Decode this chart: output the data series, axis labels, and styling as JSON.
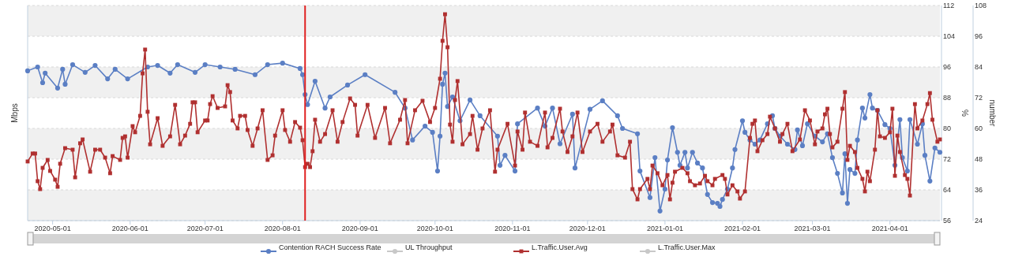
{
  "chart_data": {
    "type": "line",
    "ylabel": "Mbps",
    "y2label": "%",
    "y3label": "number",
    "xlim": [
      "2020-04-21",
      "2021-04-21"
    ],
    "xticks": [
      "2020-05-01",
      "2020-06-01",
      "2020-07-01",
      "2020-08-01",
      "2020-09-01",
      "2020-10-01",
      "2020-11-01",
      "2020-12-01",
      "2021-01-01",
      "2021-02-01",
      "2021-03-01",
      "2021-04-01"
    ],
    "y2lim": [
      56,
      112
    ],
    "y2ticks": [
      56,
      64,
      72,
      80,
      88,
      96,
      104,
      112
    ],
    "y3lim": [
      24,
      108
    ],
    "y3ticks": [
      24,
      36,
      48,
      60,
      72,
      84,
      96,
      108
    ],
    "grid": "y",
    "legend": "bottom",
    "ref_lines": [
      {
        "axis": "x",
        "value": "2020-08-10",
        "color": "#e02020"
      }
    ],
    "series": [
      {
        "name": "Contention RACH Success Rate",
        "color": "#5b7fc4",
        "axis": "y2",
        "marker": "circle",
        "x": [
          "2020-04-21",
          "2020-04-25",
          "2020-04-27",
          "2020-04-28",
          "2020-05-03",
          "2020-05-05",
          "2020-05-06",
          "2020-05-09",
          "2020-05-14",
          "2020-05-18",
          "2020-05-23",
          "2020-05-26",
          "2020-05-31",
          "2020-06-08",
          "2020-06-12",
          "2020-06-17",
          "2020-06-20",
          "2020-06-27",
          "2020-07-01",
          "2020-07-07",
          "2020-07-13",
          "2020-07-21",
          "2020-07-26",
          "2020-08-01",
          "2020-08-08",
          "2020-08-09",
          "2020-08-10",
          "2020-08-11",
          "2020-08-14",
          "2020-08-18",
          "2020-08-20",
          "2020-08-27",
          "2020-09-03",
          "2020-09-15",
          "2020-09-19",
          "2020-09-22",
          "2020-09-27",
          "2020-09-30",
          "2020-10-02",
          "2020-10-03",
          "2020-10-04",
          "2020-10-05",
          "2020-10-06",
          "2020-10-08",
          "2020-10-11",
          "2020-10-15",
          "2020-10-19",
          "2020-10-26",
          "2020-10-27",
          "2020-10-29",
          "2020-11-02",
          "2020-11-03",
          "2020-11-11",
          "2020-11-14",
          "2020-11-17",
          "2020-11-20",
          "2020-11-25",
          "2020-11-26",
          "2020-12-02",
          "2020-12-07",
          "2020-12-13",
          "2020-12-15",
          "2020-12-21",
          "2020-12-22",
          "2020-12-26",
          "2020-12-28",
          "2020-12-30",
          "2021-01-01",
          "2021-01-02",
          "2021-01-04",
          "2021-01-06",
          "2021-01-07",
          "2021-01-09",
          "2021-01-10",
          "2021-01-12",
          "2021-01-14",
          "2021-01-16",
          "2021-01-18",
          "2021-01-20",
          "2021-01-22",
          "2021-01-23",
          "2021-01-24",
          "2021-01-26",
          "2021-01-28",
          "2021-01-29",
          "2021-02-01",
          "2021-02-02",
          "2021-02-04",
          "2021-02-06",
          "2021-02-08",
          "2021-02-11",
          "2021-02-13",
          "2021-02-14",
          "2021-02-16",
          "2021-02-19",
          "2021-02-22",
          "2021-02-23",
          "2021-02-25",
          "2021-02-27",
          "2021-03-02",
          "2021-03-05",
          "2021-03-07",
          "2021-03-09",
          "2021-03-11",
          "2021-03-13",
          "2021-03-14",
          "2021-03-15",
          "2021-03-16",
          "2021-03-18",
          "2021-03-19",
          "2021-03-21",
          "2021-03-22",
          "2021-03-24",
          "2021-03-25",
          "2021-03-27",
          "2021-03-30",
          "2021-04-01",
          "2021-04-03",
          "2021-04-05",
          "2021-04-06",
          "2021-04-08",
          "2021-04-09",
          "2021-04-12",
          "2021-04-14",
          "2021-04-15",
          "2021-04-17",
          "2021-04-19",
          "2021-04-21"
        ],
        "values": [
          95,
          96,
          91.9,
          94.4,
          90.5,
          95.4,
          91.5,
          96.6,
          94.6,
          96.4,
          92.9,
          95.4,
          92.9,
          96,
          96.4,
          94.4,
          96.6,
          94.6,
          96.6,
          96,
          95.4,
          94,
          96.6,
          97,
          95.6,
          94,
          88.8,
          86.2,
          92.3,
          85.3,
          88.2,
          91.3,
          94,
          89.4,
          85.3,
          77,
          80.6,
          79,
          68.9,
          78,
          91.5,
          94.4,
          85.7,
          88.2,
          82,
          87.4,
          83.3,
          78,
          70.4,
          73,
          68.9,
          81.2,
          85.3,
          80.6,
          85.3,
          76,
          83.7,
          69.7,
          85,
          87.2,
          83.3,
          80,
          78.6,
          68.9,
          62,
          72.4,
          58.5,
          64.2,
          71.8,
          80.2,
          73.8,
          70.4,
          73.8,
          69.7,
          73.8,
          71,
          69.7,
          62.8,
          60.7,
          60.5,
          59.7,
          61.5,
          64.2,
          69.7,
          74.5,
          82,
          79,
          77,
          75.9,
          77,
          81.2,
          83.3,
          80,
          78,
          75.9,
          74.5,
          79.6,
          75.5,
          81.2,
          78,
          76.5,
          78.6,
          72.4,
          68.3,
          63.2,
          73.4,
          60.5,
          69.3,
          68.3,
          77,
          85.3,
          82.7,
          88.8,
          85.3,
          84.7,
          81,
          80,
          70.4,
          82.3,
          72.4,
          68.9,
          82.3,
          75.9,
          81.2,
          73,
          66.3,
          74.9,
          73.8
        ]
      },
      {
        "name": "UL Throughput",
        "color": "#c8c8c8"
      },
      {
        "name": "L.Traffic.User.Avg",
        "color": "#b03030",
        "axis": "y3",
        "marker": "square",
        "x": [
          "2020-04-21",
          "2020-04-23",
          "2020-04-24",
          "2020-04-25",
          "2020-04-26",
          "2020-04-27",
          "2020-04-29",
          "2020-04-30",
          "2020-05-02",
          "2020-05-03",
          "2020-05-04",
          "2020-05-06",
          "2020-05-09",
          "2020-05-10",
          "2020-05-12",
          "2020-05-13",
          "2020-05-16",
          "2020-05-18",
          "2020-05-20",
          "2020-05-22",
          "2020-05-24",
          "2020-05-25",
          "2020-05-28",
          "2020-05-29",
          "2020-05-30",
          "2020-05-31",
          "2020-06-02",
          "2020-06-03",
          "2020-06-05",
          "2020-06-06",
          "2020-06-07",
          "2020-06-08",
          "2020-06-09",
          "2020-06-12",
          "2020-06-14",
          "2020-06-17",
          "2020-06-19",
          "2020-06-21",
          "2020-06-23",
          "2020-06-25",
          "2020-06-26",
          "2020-06-27",
          "2020-06-28",
          "2020-07-01",
          "2020-07-02",
          "2020-07-03",
          "2020-07-04",
          "2020-07-06",
          "2020-07-09",
          "2020-07-10",
          "2020-07-11",
          "2020-07-12",
          "2020-07-14",
          "2020-07-15",
          "2020-07-17",
          "2020-07-18",
          "2020-07-20",
          "2020-07-22",
          "2020-07-24",
          "2020-07-26",
          "2020-07-28",
          "2020-07-29",
          "2020-08-01",
          "2020-08-02",
          "2020-08-04",
          "2020-08-06",
          "2020-08-08",
          "2020-08-09",
          "2020-08-10",
          "2020-08-11",
          "2020-08-12",
          "2020-08-13",
          "2020-08-14",
          "2020-08-16",
          "2020-08-18",
          "2020-08-21",
          "2020-08-23",
          "2020-08-25",
          "2020-08-28",
          "2020-08-30",
          "2020-08-31",
          "2020-09-04",
          "2020-09-07",
          "2020-09-11",
          "2020-09-13",
          "2020-09-17",
          "2020-09-19",
          "2020-09-20",
          "2020-09-23",
          "2020-09-26",
          "2020-09-29",
          "2020-10-01",
          "2020-10-03",
          "2020-10-04",
          "2020-10-05",
          "2020-10-06",
          "2020-10-07",
          "2020-10-08",
          "2020-10-09",
          "2020-10-10",
          "2020-10-12",
          "2020-10-15",
          "2020-10-16",
          "2020-10-18",
          "2020-10-20",
          "2020-10-23",
          "2020-10-25",
          "2020-10-26",
          "2020-10-30",
          "2020-11-02",
          "2020-11-03",
          "2020-11-05",
          "2020-11-06",
          "2020-11-08",
          "2020-11-11",
          "2020-11-14",
          "2020-11-15",
          "2020-11-17",
          "2020-11-20",
          "2020-11-21",
          "2020-11-23",
          "2020-11-25",
          "2020-11-27",
          "2020-11-29",
          "2020-12-02",
          "2020-12-05",
          "2020-12-07",
          "2020-12-10",
          "2020-12-11",
          "2020-12-13",
          "2020-12-16",
          "2020-12-18",
          "2020-12-19",
          "2020-12-21",
          "2020-12-22",
          "2020-12-25",
          "2020-12-26",
          "2020-12-27",
          "2020-12-29",
          "2020-12-31",
          "2021-01-02",
          "2021-01-03",
          "2021-01-04",
          "2021-01-05",
          "2021-01-08",
          "2021-01-10",
          "2021-01-11",
          "2021-01-13",
          "2021-01-15",
          "2021-01-17",
          "2021-01-18",
          "2021-01-20",
          "2021-01-21",
          "2021-01-24",
          "2021-01-25",
          "2021-01-26",
          "2021-01-28",
          "2021-01-30",
          "2021-01-31",
          "2021-02-02",
          "2021-02-04",
          "2021-02-05",
          "2021-02-06",
          "2021-02-07",
          "2021-02-09",
          "2021-02-11",
          "2021-02-12",
          "2021-02-14",
          "2021-02-16",
          "2021-02-17",
          "2021-02-19",
          "2021-02-21",
          "2021-02-24",
          "2021-02-26",
          "2021-02-28",
          "2021-03-02",
          "2021-03-03",
          "2021-03-05",
          "2021-03-06",
          "2021-03-07",
          "2021-03-08",
          "2021-03-09",
          "2021-03-11",
          "2021-03-13",
          "2021-03-14",
          "2021-03-15",
          "2021-03-16",
          "2021-03-18",
          "2021-03-19",
          "2021-03-21",
          "2021-03-22",
          "2021-03-23",
          "2021-03-24",
          "2021-03-26",
          "2021-03-27",
          "2021-03-28",
          "2021-03-30",
          "2021-04-01",
          "2021-04-02",
          "2021-04-03",
          "2021-04-04",
          "2021-04-05",
          "2021-04-07",
          "2021-04-08",
          "2021-04-09",
          "2021-04-11",
          "2021-04-12",
          "2021-04-14",
          "2021-04-16",
          "2021-04-17",
          "2021-04-18",
          "2021-04-20",
          "2021-04-21"
        ],
        "values": [
          47.1,
          50.2,
          50.2,
          39.4,
          36.3,
          44.6,
          47.7,
          43.4,
          40,
          37.2,
          46.2,
          52.3,
          51.7,
          40.9,
          54.2,
          55.7,
          43.1,
          51.7,
          51.7,
          48.6,
          42.5,
          49.2,
          47.7,
          56.3,
          56.9,
          48.6,
          60.9,
          58.5,
          64.9,
          81.5,
          90.8,
          66.5,
          53.8,
          64,
          53.2,
          56.9,
          69.2,
          53.8,
          57.2,
          61.8,
          70.2,
          70.2,
          58.5,
          63.1,
          63.1,
          69.5,
          72.6,
          68,
          68.6,
          76.9,
          74.2,
          63.1,
          60,
          64.9,
          64.9,
          59.4,
          53.2,
          60,
          67.1,
          47.7,
          49.5,
          57.2,
          67.1,
          59.4,
          54.8,
          62.5,
          60.3,
          55.4,
          44.9,
          46.2,
          44.9,
          51.1,
          63.4,
          54.8,
          57.8,
          67.1,
          54.8,
          62.5,
          71.7,
          69.2,
          57.2,
          69.2,
          56.3,
          68,
          54.2,
          63.4,
          71.1,
          54.2,
          67.1,
          70.8,
          62.5,
          68,
          79.4,
          94.2,
          104.6,
          91.7,
          61.5,
          54.8,
          71.1,
          78.5,
          53.8,
          57.8,
          64.9,
          51.7,
          60,
          67.1,
          43.1,
          51.7,
          61.8,
          45.5,
          58.8,
          51.7,
          66.2,
          54.8,
          53.2,
          66.2,
          52.6,
          56.3,
          67.7,
          58.8,
          50.8,
          56.9,
          66.2,
          50.8,
          58.8,
          61.8,
          54.8,
          58.8,
          61.5,
          49.5,
          48.6,
          54.8,
          36.3,
          32.3,
          36.3,
          40.3,
          36.3,
          45.5,
          42.5,
          37.8,
          41.8,
          32.3,
          38.8,
          43.1,
          44.6,
          42.5,
          39.4,
          37.8,
          38.5,
          41.5,
          39.4,
          37.8,
          40.3,
          41.8,
          40.3,
          34.2,
          37.8,
          35.4,
          32.6,
          35.4,
          56.3,
          61.8,
          63.1,
          51.1,
          55.4,
          57.8,
          64.6,
          60,
          54.8,
          57.8,
          61.8,
          51.1,
          55.7,
          67.1,
          63.1,
          53.8,
          58.8,
          60,
          65.5,
          67.7,
          57.8,
          52.6,
          54.8,
          67.7,
          74.2,
          47.7,
          53.2,
          50.8,
          44.6,
          40.3,
          35.4,
          43.1,
          39.4,
          51.7,
          67.1,
          56.9,
          56.3,
          58.5,
          67.7,
          41.5,
          57.2,
          50.8,
          41.8,
          40.3,
          33.8,
          69.5,
          60,
          63.1,
          69.5,
          73.8,
          63.4,
          54.8,
          55.7
        ]
      },
      {
        "name": "L.Traffic.User.Max",
        "color": "#c8c8c8"
      }
    ]
  }
}
